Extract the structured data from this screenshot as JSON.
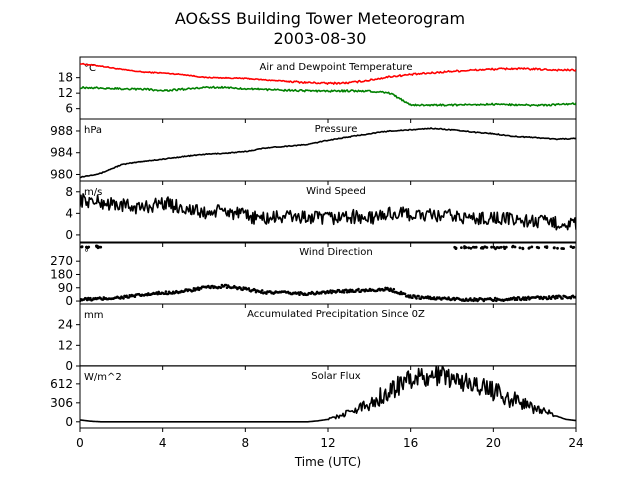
{
  "figure": {
    "title_line1": "AO&SS Building Tower Meteorogram",
    "title_line2": "2003-08-30",
    "xlabel": "Time (UTC)",
    "xticks": [
      "0",
      "4",
      "8",
      "12",
      "16",
      "20",
      "24"
    ],
    "colors": {
      "temperature": "#ff0000",
      "dewpoint": "#008000",
      "default": "#000000"
    }
  },
  "chart_data": [
    {
      "type": "line",
      "id": "temp",
      "title": "Air and Dewpoint Temperature",
      "unit": "°C",
      "ylim": [
        2,
        26
      ],
      "yticks": [
        "6",
        "12",
        "18"
      ],
      "x": [
        0,
        1,
        2,
        3,
        4,
        5,
        6,
        7,
        8,
        9,
        10,
        11,
        12,
        13,
        14,
        15,
        16,
        17,
        18,
        19,
        20,
        21,
        22,
        23,
        24
      ],
      "series": [
        {
          "values": [
            23.4,
            22.5,
            21.2,
            20.2,
            19.8,
            19.2,
            18.1,
            17.9,
            17.7,
            17.1,
            16.6,
            16.1,
            15.8,
            16.0,
            17.0,
            18.4,
            19.2,
            19.8,
            20.5,
            20.9,
            21.3,
            21.5,
            21.3,
            21.0,
            20.9
          ],
          "color": "#ff0000"
        },
        {
          "values": [
            14.2,
            14.0,
            13.7,
            13.6,
            13.0,
            13.5,
            14.3,
            14.2,
            13.8,
            13.4,
            13.1,
            12.9,
            12.8,
            12.9,
            12.8,
            12.0,
            7.5,
            7.4,
            7.4,
            7.6,
            7.7,
            7.5,
            7.3,
            7.5,
            8.0
          ],
          "color": "#008000"
        }
      ]
    },
    {
      "type": "line",
      "id": "pressure",
      "title": "Pressure",
      "unit": "hPa",
      "ylim": [
        978.8,
        990.2
      ],
      "yticks": [
        "980",
        "984",
        "988"
      ],
      "x": [
        0,
        1,
        2,
        3,
        4,
        5,
        6,
        7,
        8,
        9,
        10,
        11,
        12,
        13,
        14,
        15,
        16,
        17,
        18,
        19,
        20,
        21,
        22,
        23,
        24
      ],
      "series": [
        {
          "values": [
            979.5,
            980.2,
            981.8,
            982.4,
            982.8,
            983.3,
            983.7,
            983.9,
            984.2,
            984.9,
            985.2,
            985.5,
            986.3,
            986.9,
            987.5,
            988.0,
            988.2,
            988.5,
            988.2,
            987.8,
            987.5,
            987.0,
            986.8,
            986.5,
            986.6
          ],
          "color": "#000000"
        }
      ]
    },
    {
      "type": "line",
      "id": "wind_speed",
      "title": "Wind Speed",
      "unit": "m/s",
      "ylim": [
        -1.5,
        10
      ],
      "yticks": [
        "0",
        "4",
        "8"
      ],
      "x": [
        0,
        1,
        2,
        3,
        4,
        5,
        6,
        7,
        8,
        9,
        10,
        11,
        12,
        13,
        14,
        15,
        16,
        17,
        18,
        19,
        20,
        21,
        22,
        23,
        24
      ],
      "series": [
        {
          "values": [
            6.5,
            6.0,
            5.5,
            5.0,
            6.0,
            5.0,
            4.0,
            4.5,
            3.5,
            3.0,
            3.5,
            3.2,
            3.0,
            3.5,
            3.0,
            4.0,
            3.8,
            3.5,
            3.5,
            3.0,
            3.2,
            2.8,
            2.5,
            2.2,
            2.0
          ],
          "color": "#000000"
        }
      ]
    },
    {
      "type": "scatter",
      "id": "wind_direction",
      "title": "Wind Direction",
      "unit": "°",
      "ylim": [
        -20,
        400
      ],
      "yticks": [
        "0",
        "90",
        "180",
        "270"
      ],
      "x": [
        0,
        1,
        2,
        3,
        4,
        5,
        6,
        7,
        8,
        9,
        10,
        11,
        12,
        13,
        14,
        15,
        16,
        17,
        18,
        19,
        20,
        21,
        22,
        23,
        24
      ],
      "series": [
        {
          "values": [
            10,
            15,
            25,
            40,
            55,
            65,
            90,
            100,
            80,
            60,
            55,
            50,
            60,
            70,
            75,
            80,
            30,
            20,
            15,
            10,
            10,
            15,
            20,
            25,
            30
          ],
          "color": "#000000"
        }
      ],
      "high_points_x": [
        0.2,
        0.3,
        0.8,
        0.9,
        18.2,
        18.5,
        18.8,
        19.1,
        19.4,
        19.7,
        20.0,
        20.3,
        20.6,
        21.0,
        21.4,
        21.8,
        22.2,
        22.6,
        23.0,
        23.4,
        23.8
      ],
      "high_points_value": [
        370,
        365,
        368,
        360,
        360,
        365,
        358,
        366,
        362,
        368,
        360,
        364,
        361,
        367,
        359,
        363,
        360,
        366,
        362,
        358,
        364
      ]
    },
    {
      "type": "line",
      "id": "precip",
      "title": "Accumulated Precipitation Since 0Z",
      "unit": "mm",
      "ylim": [
        0,
        36
      ],
      "yticks": [
        "0",
        "12",
        "24"
      ],
      "x": [
        0,
        24
      ],
      "series": [
        {
          "values": [
            0,
            0
          ],
          "color": "#000000"
        }
      ]
    },
    {
      "type": "line",
      "id": "solar",
      "title": "Solar Flux",
      "unit": "W/m^2",
      "ylim": [
        -100,
        900
      ],
      "yticks": [
        "0",
        "306",
        "612"
      ],
      "x": [
        0,
        0.5,
        1,
        2,
        4,
        8,
        11,
        11.5,
        12,
        13,
        14,
        15,
        16,
        17,
        17.5,
        18,
        19,
        20,
        21,
        22,
        23,
        23.5,
        24
      ],
      "series": [
        {
          "values": [
            30,
            10,
            0,
            0,
            0,
            0,
            0,
            15,
            40,
            150,
            300,
            500,
            700,
            720,
            750,
            700,
            600,
            500,
            350,
            220,
            100,
            40,
            20
          ],
          "color": "#000000"
        }
      ]
    }
  ]
}
